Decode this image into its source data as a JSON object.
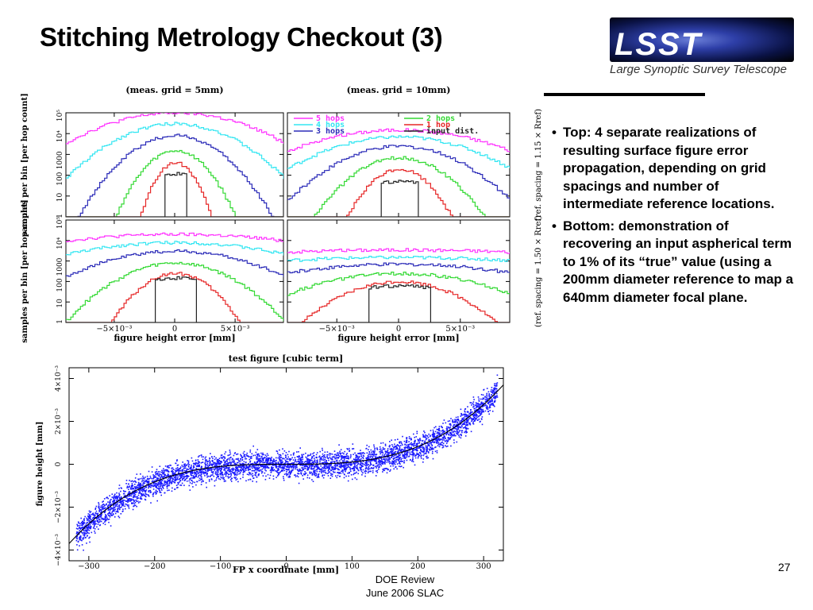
{
  "slide": {
    "title": "Stitching Metrology Checkout (3)",
    "logo_text": "LSST",
    "logo_subtitle": "Large Synoptic Survey Telescope",
    "bullets": [
      "Top: 4 separate realizations of resulting surface figure error propagation, depending on grid spacings and number of intermediate reference locations.",
      "Bottom: demonstration of recovering an input aspherical term to 1% of its “true” value (using a 200mm diameter reference to map a 640mm diameter focal plane."
    ],
    "page_number": "27",
    "footer_line1": "DOE  Review",
    "footer_line2": "June 2006 SLAC"
  },
  "colors": {
    "5 hops": "#ff33ff",
    "4 hops": "#33e6f2",
    "3 hops": "#2b2bb8",
    "2 hops": "#33d933",
    "1 hop": "#e62626",
    "input dist.": "#222222",
    "scatter": "#1a1aff"
  },
  "chart_data": [
    {
      "type": "line",
      "panel": "top-left",
      "title": "(meas. grid = 5mm)",
      "ylabel": "samples per bin [per hop count]",
      "yscale": "log",
      "ylim": [
        1,
        100000
      ],
      "yticks": [
        "1",
        "10",
        "100",
        "1000",
        "10⁴",
        "10⁵"
      ],
      "xlim": [
        -0.009,
        0.009
      ],
      "xticks": [],
      "series": [
        {
          "name": "5 hops",
          "peak": 100000,
          "width": 0.0035
        },
        {
          "name": "4 hops",
          "peak": 30000,
          "width": 0.0026
        },
        {
          "name": "3 hops",
          "peak": 8000,
          "width": 0.0019
        },
        {
          "name": "2 hops",
          "peak": 1500,
          "width": 0.0013
        },
        {
          "name": "1 hop",
          "peak": 400,
          "width": 0.00085
        },
        {
          "name": "input dist.",
          "peak": 120,
          "width": 0.0006
        }
      ]
    },
    {
      "type": "line",
      "panel": "top-right",
      "title": "(meas. grid = 10mm)",
      "yscale": "log",
      "ylim": [
        1,
        100000
      ],
      "xlim": [
        -0.009,
        0.009
      ],
      "legend": [
        "5 hops",
        "4 hops",
        "3 hops",
        "2 hops",
        "1 hop",
        "input dist."
      ],
      "ylabel_right": "(ref. spacing = 1.15 × Rref)",
      "series": [
        {
          "name": "5 hops",
          "peak": 15000,
          "width": 0.0042
        },
        {
          "name": "4 hops",
          "peak": 7000,
          "width": 0.0034
        },
        {
          "name": "3 hops",
          "peak": 2500,
          "width": 0.0026
        },
        {
          "name": "2 hops",
          "peak": 700,
          "width": 0.0019
        },
        {
          "name": "1 hop",
          "peak": 200,
          "width": 0.0013
        },
        {
          "name": "input dist.",
          "peak": 50,
          "width": 0.0009
        }
      ]
    },
    {
      "type": "line",
      "panel": "bottom-left",
      "ylabel": "samples per bin [per hop count]",
      "xlabel": "figure height error [mm]",
      "yscale": "log",
      "ylim": [
        1,
        100000
      ],
      "yticks": [
        "1",
        "10",
        "100",
        "1000",
        "10⁴",
        "10⁵"
      ],
      "xlim": [
        -0.009,
        0.009
      ],
      "xticks": [
        "−5×10⁻³",
        "0",
        "5×10⁻³"
      ],
      "series": [
        {
          "name": "5 hops",
          "peak": 20000,
          "width": 0.0075
        },
        {
          "name": "4 hops",
          "peak": 8000,
          "width": 0.0055
        },
        {
          "name": "3 hops",
          "peak": 3000,
          "width": 0.0038
        },
        {
          "name": "2 hops",
          "peak": 800,
          "width": 0.0025
        },
        {
          "name": "1 hop",
          "peak": 250,
          "width": 0.0016
        },
        {
          "name": "input dist.",
          "peak": 150,
          "width": 0.0011
        }
      ]
    },
    {
      "type": "line",
      "panel": "bottom-right",
      "xlabel": "figure height error [mm]",
      "yscale": "log",
      "ylim": [
        1,
        100000
      ],
      "xlim": [
        -0.009,
        0.009
      ],
      "xticks": [
        "−5×10⁻³",
        "0",
        "5×10⁻³"
      ],
      "ylabel_right": "(ref. spacing = 1.50 × Rref)",
      "series": [
        {
          "name": "5 hops",
          "peak": 3500,
          "width": 0.013
        },
        {
          "name": "4 hops",
          "peak": 1500,
          "width": 0.011
        },
        {
          "name": "3 hops",
          "peak": 700,
          "width": 0.0065
        },
        {
          "name": "2 hops",
          "peak": 250,
          "width": 0.0042
        },
        {
          "name": "1 hop",
          "peak": 100,
          "width": 0.0026
        },
        {
          "name": "input dist.",
          "peak": 60,
          "width": 0.0016
        }
      ]
    },
    {
      "type": "scatter",
      "panel": "bottom",
      "title": "test figure [cubic term]",
      "xlabel": "FP x coordinate [mm]",
      "ylabel": "figure height [mm]",
      "xlim": [
        -330,
        330
      ],
      "ylim": [
        -0.0045,
        0.0045
      ],
      "xticks": [
        "−300",
        "−200",
        "−100",
        "0",
        "100",
        "200",
        "300"
      ],
      "yticks": [
        "−4×10⁻³",
        "−2×10⁻³",
        "0",
        "2×10⁻³",
        "4×10⁻³"
      ],
      "fit_curve": {
        "form": "cubic",
        "y_at_x_minus_330": -0.0037,
        "y_at_x_plus_330": 0.0037
      },
      "scatter_spread": 0.0006
    }
  ]
}
